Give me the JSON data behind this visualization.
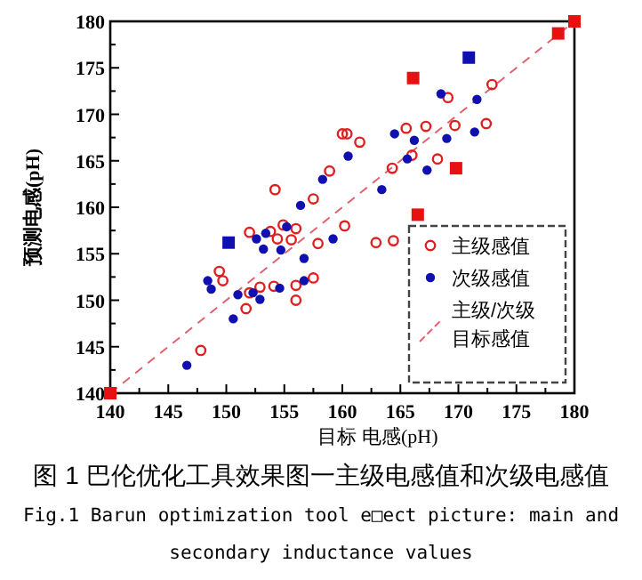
{
  "chart_data": {
    "type": "scatter",
    "xlabel": "目标 电感(pH)",
    "ylabel": "预测电感(pH)",
    "annotations": [
      "图 1 巴伦优化工具效果图一主级电感值和次级电感值",
      "Fig.1 Barun optimization tool e□ect picture: main and secondary inductance values"
    ],
    "xlim": [
      140,
      180
    ],
    "ylim": [
      140,
      180
    ],
    "xticks": [
      140,
      {
        "value": 142.5,
        "label": null
      },
      145,
      {
        "value": 147.5,
        "label": null
      },
      150,
      {
        "value": 152.5,
        "label": null
      },
      155,
      {
        "value": 157.5,
        "label": null
      },
      160,
      {
        "value": 162.5,
        "label": null
      },
      165,
      {
        "value": 167.5,
        "label": null
      },
      170,
      {
        "value": 172.5,
        "label": null
      },
      175,
      {
        "value": 177.5,
        "label": null
      },
      180
    ],
    "yticks": [
      140,
      {
        "value": 142.5,
        "label": null
      },
      145,
      {
        "value": 147.5,
        "label": null
      },
      150,
      {
        "value": 152.5,
        "label": null
      },
      155,
      {
        "value": 157.5,
        "label": null
      },
      160,
      {
        "value": 162.5,
        "label": null
      },
      165,
      {
        "value": 167.5,
        "label": null
      },
      170,
      {
        "value": 172.5,
        "label": null
      },
      175,
      {
        "value": 177.5,
        "label": null
      },
      180
    ],
    "grid": false,
    "legend": "bottom right",
    "series": [
      {
        "name": "主级/次级目标感值",
        "type": "line",
        "line_style": "dashed",
        "marker": "none",
        "color": "#e06070",
        "x": [
          140,
          180
        ],
        "values": [
          140,
          180
        ]
      },
      {
        "type": "scatter",
        "marker": "square",
        "color": "#e81010",
        "x": [
          166.1,
          169.8,
          166.5,
          178.6,
          140,
          180
        ],
        "values": [
          173.9,
          164.2,
          159.2,
          178.7,
          140,
          180
        ]
      },
      {
        "type": "scatter",
        "marker": "square",
        "color": "#1010b0",
        "x": [
          170.9,
          150.2
        ],
        "values": [
          176.1,
          156.2
        ]
      },
      {
        "name": "主级感值",
        "type": "scatter",
        "marker": "circle_open",
        "color": "#e02020",
        "x": [
          169.1,
          172.9,
          165.5,
          167.2,
          169.7,
          172.4,
          160.0,
          160.4,
          161.5,
          166.0,
          164.3,
          168.2,
          158.9,
          157.5,
          154.2,
          152.0,
          153.8,
          154.9,
          156.0,
          155.6,
          154.4,
          157.9,
          149.4,
          149.7,
          152.0,
          152.9,
          154.1,
          156.0,
          157.5,
          156.0,
          151.7,
          147.8,
          160.2,
          162.9,
          164.4
        ],
        "values": [
          171.8,
          173.2,
          168.5,
          168.7,
          168.8,
          169.0,
          167.9,
          167.9,
          167.0,
          165.6,
          164.2,
          165.2,
          163.9,
          160.9,
          161.9,
          157.3,
          157.4,
          158.1,
          157.7,
          156.5,
          156.6,
          156.1,
          153.1,
          152.1,
          150.8,
          151.4,
          151.5,
          151.6,
          152.4,
          150.0,
          149.1,
          144.6,
          158.0,
          156.2,
          156.4
        ]
      },
      {
        "name": "次级感值",
        "type": "scatter",
        "marker": "circle",
        "color": "#1010b0",
        "x": [
          168.5,
          171.6,
          164.5,
          166.2,
          169.0,
          171.4,
          160.5,
          165.6,
          167.3,
          158.3,
          163.4,
          156.4,
          152.6,
          153.4,
          155.2,
          153.2,
          154.7,
          156.7,
          159.2,
          148.4,
          148.7,
          152.3,
          152.9,
          154.6,
          156.7,
          151.0,
          150.6,
          146.6
        ],
        "values": [
          172.2,
          171.6,
          167.9,
          167.2,
          167.4,
          168.1,
          165.5,
          165.2,
          164.0,
          163.0,
          161.9,
          160.2,
          156.6,
          157.2,
          157.9,
          155.5,
          155.4,
          154.5,
          156.6,
          152.1,
          151.2,
          150.8,
          150.1,
          151.3,
          152.1,
          150.6,
          148.0,
          143.0
        ]
      }
    ]
  }
}
